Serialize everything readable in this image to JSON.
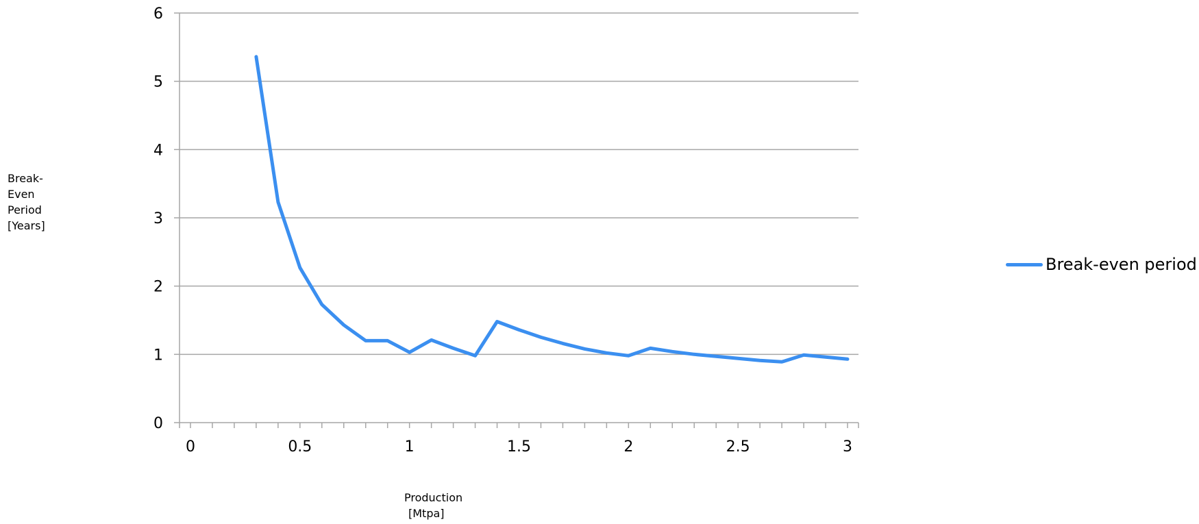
{
  "chart_data": {
    "type": "line",
    "title": "",
    "xlabel_line1": "Production",
    "xlabel_line2": "[Mtpa]",
    "ylabel": "Break-\nEven\nPeriod\n[Years]",
    "xlim": [
      -0.05,
      3.05
    ],
    "ylim": [
      0,
      6
    ],
    "xticks": [
      0,
      0.5,
      1,
      1.5,
      2,
      2.5,
      3
    ],
    "xtick_labels": [
      "0",
      "0.5",
      "1",
      "1.5",
      "2",
      "2.5",
      "3"
    ],
    "yticks": [
      0,
      1,
      2,
      3,
      4,
      5,
      6
    ],
    "ytick_labels": [
      "0",
      "1",
      "2",
      "3",
      "4",
      "5",
      "6"
    ],
    "grid": true,
    "legend_position": "right",
    "series": [
      {
        "name": "Break-even period",
        "color": "#3b8ff0",
        "x": [
          0.3,
          0.4,
          0.5,
          0.6,
          0.7,
          0.8,
          0.9,
          1.0,
          1.1,
          1.2,
          1.3,
          1.4,
          1.5,
          1.6,
          1.7,
          1.8,
          1.9,
          2.0,
          2.1,
          2.2,
          2.3,
          2.4,
          2.5,
          2.6,
          2.7,
          2.8,
          2.9,
          3.0
        ],
        "y": [
          5.36,
          3.23,
          2.27,
          1.73,
          1.43,
          1.2,
          1.2,
          1.03,
          1.21,
          1.09,
          0.98,
          1.48,
          1.36,
          1.25,
          1.16,
          1.08,
          1.02,
          0.98,
          1.09,
          1.04,
          1.0,
          0.97,
          0.94,
          0.91,
          0.89,
          0.99,
          0.96,
          0.93
        ]
      }
    ]
  }
}
